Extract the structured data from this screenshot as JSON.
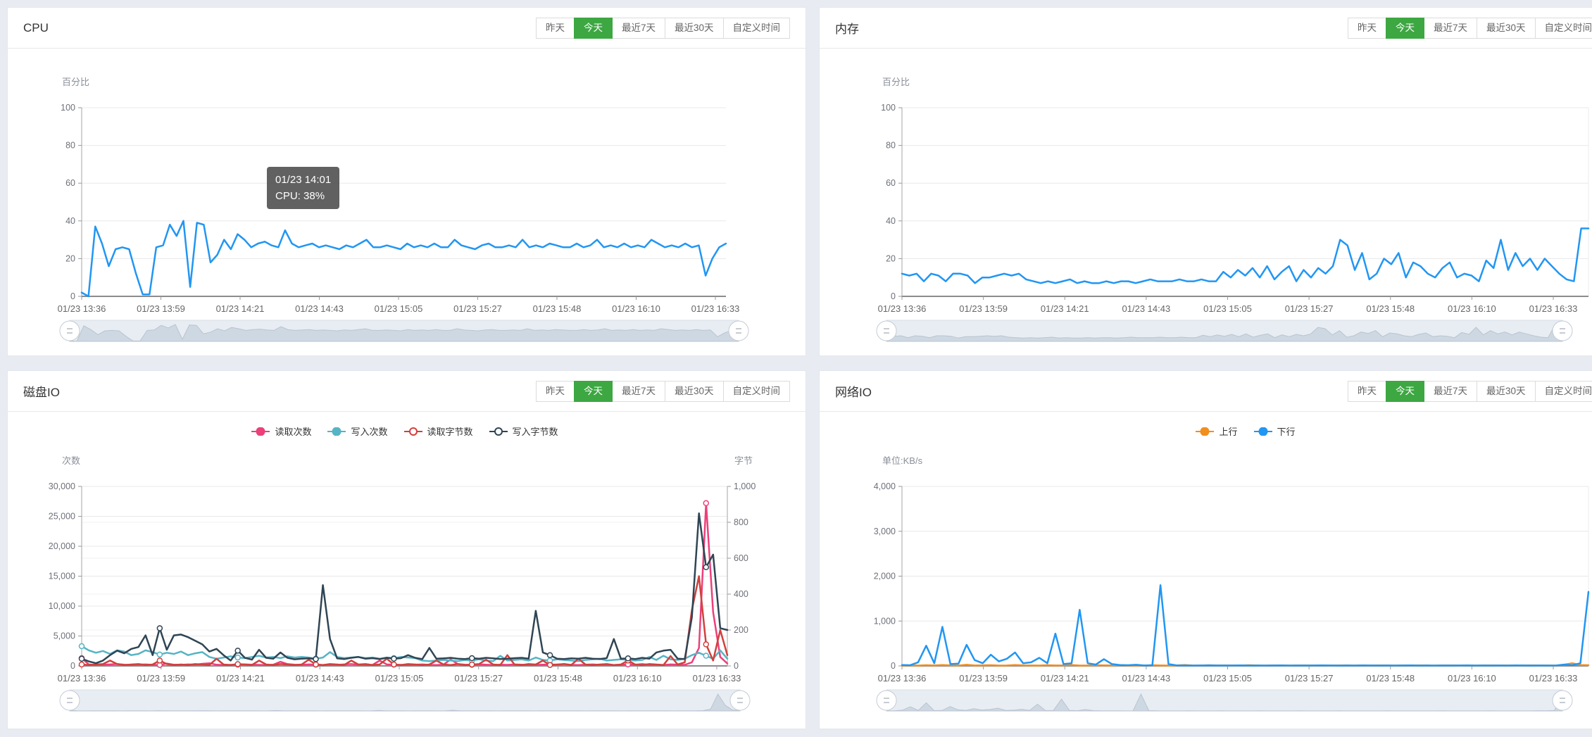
{
  "page": {
    "background": "#e9ebf2",
    "accent_green": "#3da742"
  },
  "time_buttons": [
    "昨天",
    "今天",
    "最近7天",
    "最近30天",
    "自定义时间"
  ],
  "active_button": "今天",
  "panels": [
    {
      "title": "CPU"
    },
    {
      "title": "内存"
    },
    {
      "title": "磁盘IO"
    },
    {
      "title": "网络IO"
    }
  ],
  "tooltip": {
    "line1": "01/23 14:01",
    "line2": "CPU: 38%"
  },
  "chart_data": [
    {
      "id": "cpu",
      "type": "line",
      "title": "CPU",
      "y_name": "百分比",
      "ylim": [
        0,
        100
      ],
      "yticks": [
        0,
        20,
        40,
        60,
        80,
        100
      ],
      "ytick_labels": [
        "0",
        "20",
        "40",
        "60",
        "80",
        "100"
      ],
      "x_labels": [
        "01/23 13:36",
        "01/23 13:59",
        "01/23 14:21",
        "01/23 14:43",
        "01/23 15:05",
        "01/23 15:27",
        "01/23 15:48",
        "01/23 16:10",
        "01/23 16:33"
      ],
      "grid": true,
      "legend_position": "none",
      "slider_series": 0,
      "series": [
        {
          "name": "CPU",
          "color": "#2196f3",
          "axis": "left",
          "values": [
            2,
            0,
            37,
            28,
            16,
            25,
            26,
            25,
            12,
            1,
            1,
            26,
            27,
            38,
            32,
            40,
            5,
            39,
            38,
            18,
            22,
            30,
            25,
            33,
            30,
            26,
            28,
            29,
            27,
            26,
            35,
            28,
            26,
            27,
            28,
            26,
            27,
            26,
            25,
            27,
            26,
            28,
            30,
            26,
            26,
            27,
            26,
            25,
            28,
            26,
            27,
            26,
            28,
            26,
            26,
            30,
            27,
            26,
            25,
            27,
            28,
            26,
            26,
            27,
            26,
            30,
            26,
            27,
            26,
            28,
            27,
            26,
            26,
            28,
            26,
            27,
            30,
            26,
            27,
            26,
            28,
            26,
            27,
            26,
            30,
            28,
            26,
            27,
            26,
            28,
            26,
            27,
            11,
            20,
            26,
            28
          ]
        }
      ]
    },
    {
      "id": "mem",
      "type": "line",
      "title": "内存",
      "y_name": "百分比",
      "ylim": [
        0,
        100
      ],
      "yticks": [
        0,
        20,
        40,
        60,
        80,
        100
      ],
      "ytick_labels": [
        "0",
        "20",
        "40",
        "60",
        "80",
        "100"
      ],
      "x_labels": [
        "01/23 13:36",
        "01/23 13:59",
        "01/23 14:21",
        "01/23 14:43",
        "01/23 15:05",
        "01/23 15:27",
        "01/23 15:48",
        "01/23 16:10",
        "01/23 16:33"
      ],
      "grid": true,
      "legend_position": "none",
      "slider_series": 0,
      "series": [
        {
          "name": "内存",
          "color": "#2196f3",
          "axis": "left",
          "values": [
            12,
            11,
            12,
            8,
            12,
            11,
            8,
            12,
            12,
            11,
            7,
            10,
            10,
            11,
            12,
            11,
            12,
            9,
            8,
            7,
            8,
            7,
            8,
            9,
            7,
            8,
            7,
            7,
            8,
            7,
            8,
            8,
            7,
            8,
            9,
            8,
            8,
            8,
            9,
            8,
            8,
            9,
            8,
            8,
            13,
            10,
            14,
            11,
            15,
            10,
            16,
            9,
            13,
            16,
            8,
            14,
            10,
            15,
            12,
            16,
            30,
            27,
            14,
            23,
            9,
            12,
            20,
            17,
            23,
            10,
            18,
            16,
            12,
            10,
            15,
            18,
            10,
            12,
            11,
            8,
            19,
            15,
            30,
            14,
            23,
            16,
            20,
            14,
            20,
            16,
            12,
            9,
            8,
            36,
            36
          ]
        }
      ]
    },
    {
      "id": "disk",
      "type": "line",
      "title": "磁盘IO",
      "y_name": "次数",
      "y2_name": "字节",
      "ylim": [
        0,
        30000
      ],
      "yticks": [
        0,
        5000,
        10000,
        15000,
        20000,
        25000,
        30000
      ],
      "ytick_labels": [
        "0",
        "5,000",
        "10,000",
        "15,000",
        "20,000",
        "25,000",
        "30,000"
      ],
      "y2lim": [
        0,
        1000
      ],
      "y2ticks": [
        0,
        200,
        400,
        600,
        800,
        1000
      ],
      "y2tick_labels": [
        "0",
        "200",
        "400",
        "600",
        "800",
        "1,000"
      ],
      "x_labels": [
        "01/23 13:36",
        "01/23 13:59",
        "01/23 14:21",
        "01/23 14:43",
        "01/23 15:05",
        "01/23 15:27",
        "01/23 15:48",
        "01/23 16:10",
        "01/23 16:33"
      ],
      "grid": true,
      "legend_position": "top-center",
      "legend": [
        {
          "label": "读取次数",
          "color": "#ec407a",
          "marker": "filled"
        },
        {
          "label": "写入次数",
          "color": "#56b4c4",
          "marker": "filled"
        },
        {
          "label": "读取字节数",
          "color": "#d0413e",
          "marker": "hollow"
        },
        {
          "label": "写入字节数",
          "color": "#2f4554",
          "marker": "hollow"
        }
      ],
      "slider_series": 0,
      "markers": true,
      "series": [
        {
          "name": "读取次数",
          "color": "#ec407a",
          "axis": "left",
          "values": [
            1300,
            250,
            150,
            180,
            250,
            300,
            200,
            150,
            200,
            250,
            180,
            150,
            400,
            200,
            180,
            250,
            200,
            350,
            450,
            200,
            150,
            180,
            200,
            250,
            200,
            180,
            150,
            200,
            700,
            300,
            200,
            180,
            250,
            200,
            150,
            200,
            180,
            250,
            300,
            200,
            150,
            180,
            900,
            250,
            200,
            180,
            150,
            200,
            250,
            180,
            150,
            200,
            1100,
            300,
            200,
            180,
            250,
            200,
            150,
            200,
            180,
            250,
            200,
            150,
            180,
            200,
            250,
            200,
            300,
            180,
            150,
            200,
            250,
            180,
            200,
            150,
            180,
            250,
            200,
            300,
            180,
            200,
            150,
            250,
            200,
            180,
            600,
            3000,
            27200,
            9000,
            1500,
            400
          ]
        },
        {
          "name": "写入次数",
          "color": "#56b4c4",
          "axis": "left",
          "values": [
            3300,
            2600,
            2200,
            2500,
            2000,
            2600,
            2400,
            1800,
            2000,
            2600,
            2300,
            1900,
            2200,
            2000,
            2400,
            1800,
            2100,
            2300,
            1500,
            1200,
            1400,
            1600,
            1400,
            1300,
            1500,
            1700,
            1400,
            1500,
            1300,
            1600,
            1400,
            1500,
            1400,
            1200,
            1400,
            2300,
            1500,
            1300,
            1400,
            1500,
            1300,
            1400,
            1200,
            1400,
            1300,
            1500,
            1400,
            1300,
            900,
            800,
            900,
            1000,
            900,
            800,
            1000,
            900,
            1100,
            900,
            800,
            1700,
            900,
            1000,
            1100,
            900,
            1400,
            1000,
            900,
            1100,
            1000,
            900,
            800,
            1000,
            1100,
            1200,
            900,
            1000,
            1100,
            1000,
            900,
            1000,
            1500,
            1000,
            1700,
            1100,
            1000,
            1200,
            1800,
            2200,
            1700,
            1200,
            2600,
            1200
          ]
        },
        {
          "name": "读取字节数",
          "color": "#d0413e",
          "axis": "right",
          "values": [
            8,
            5,
            8,
            10,
            30,
            10,
            5,
            8,
            10,
            5,
            8,
            30,
            10,
            5,
            8,
            5,
            10,
            8,
            5,
            40,
            8,
            5,
            10,
            8,
            5,
            30,
            8,
            5,
            10,
            8,
            5,
            8,
            35,
            8,
            5,
            10,
            8,
            5,
            30,
            8,
            10,
            5,
            8,
            40,
            8,
            5,
            10,
            8,
            5,
            8,
            30,
            8,
            5,
            10,
            5,
            8,
            10,
            35,
            8,
            5,
            60,
            8,
            5,
            10,
            8,
            30,
            5,
            8,
            10,
            5,
            40,
            8,
            5,
            8,
            10,
            5,
            8,
            30,
            8,
            5,
            10,
            8,
            5,
            55,
            8,
            20,
            310,
            500,
            120,
            30,
            200,
            60
          ]
        },
        {
          "name": "写入字节数",
          "color": "#2f4554",
          "axis": "right",
          "values": [
            40,
            25,
            15,
            30,
            60,
            85,
            70,
            95,
            105,
            170,
            60,
            210,
            90,
            170,
            175,
            160,
            140,
            120,
            80,
            95,
            60,
            30,
            85,
            45,
            35,
            90,
            45,
            40,
            75,
            45,
            37,
            40,
            42,
            38,
            450,
            150,
            42,
            38,
            45,
            50,
            40,
            43,
            38,
            45,
            40,
            43,
            60,
            45,
            38,
            100,
            40,
            42,
            45,
            40,
            38,
            43,
            40,
            45,
            42,
            38,
            40,
            43,
            45,
            40,
            307,
            75,
            60,
            40,
            38,
            42,
            40,
            45,
            40,
            38,
            43,
            150,
            40,
            42,
            38,
            45,
            40,
            75,
            85,
            90,
            40,
            38,
            270,
            850,
            550,
            620,
            210,
            200
          ]
        }
      ]
    },
    {
      "id": "net",
      "type": "line",
      "title": "网络IO",
      "y_name": "单位:KB/s",
      "ylim": [
        0,
        4000
      ],
      "yticks": [
        0,
        1000,
        2000,
        3000,
        4000
      ],
      "ytick_labels": [
        "0",
        "1,000",
        "2,000",
        "3,000",
        "4,000"
      ],
      "x_labels": [
        "01/23 13:36",
        "01/23 13:59",
        "01/23 14:21",
        "01/23 14:43",
        "01/23 15:05",
        "01/23 15:27",
        "01/23 15:48",
        "01/23 16:10",
        "01/23 16:33"
      ],
      "grid": true,
      "legend_position": "top-center",
      "legend": [
        {
          "label": "上行",
          "color": "#f28e1e",
          "marker": "filled"
        },
        {
          "label": "下行",
          "color": "#2196f3",
          "marker": "filled"
        }
      ],
      "slider_series": 1,
      "series": [
        {
          "name": "上行",
          "color": "#f28e1e",
          "axis": "left",
          "values": [
            10,
            12,
            8,
            15,
            10,
            20,
            12,
            8,
            25,
            10,
            12,
            15,
            8,
            10,
            20,
            12,
            10,
            8,
            15,
            10,
            12,
            20,
            8,
            10,
            15,
            12,
            10,
            20,
            8,
            12,
            10,
            15,
            10,
            8,
            12,
            20,
            10,
            8,
            15,
            10,
            12,
            8,
            10,
            15,
            10,
            8,
            12,
            10,
            8,
            10,
            12,
            8,
            10,
            8,
            10,
            12,
            8,
            10,
            8,
            12,
            10,
            8,
            10,
            8,
            12,
            10,
            8,
            10,
            12,
            8,
            10,
            8,
            10,
            12,
            8,
            10,
            8,
            10,
            12,
            8,
            10,
            8,
            30,
            60,
            20,
            15
          ]
        },
        {
          "name": "下行",
          "color": "#2196f3",
          "axis": "left",
          "values": [
            20,
            15,
            80,
            450,
            60,
            870,
            40,
            50,
            470,
            130,
            60,
            250,
            100,
            160,
            300,
            60,
            80,
            180,
            60,
            720,
            40,
            60,
            1250,
            60,
            30,
            150,
            40,
            20,
            15,
            25,
            10,
            15,
            1800,
            40,
            12,
            10,
            8,
            10,
            12,
            10,
            8,
            10,
            12,
            8,
            10,
            8,
            10,
            12,
            8,
            10,
            8,
            10,
            12,
            10,
            8,
            10,
            8,
            12,
            10,
            8,
            10,
            8,
            10,
            12,
            8,
            10,
            8,
            10,
            8,
            10,
            12,
            8,
            10,
            8,
            10,
            8,
            12,
            10,
            8,
            10,
            8,
            10,
            30,
            15,
            60,
            1650
          ]
        }
      ]
    }
  ]
}
